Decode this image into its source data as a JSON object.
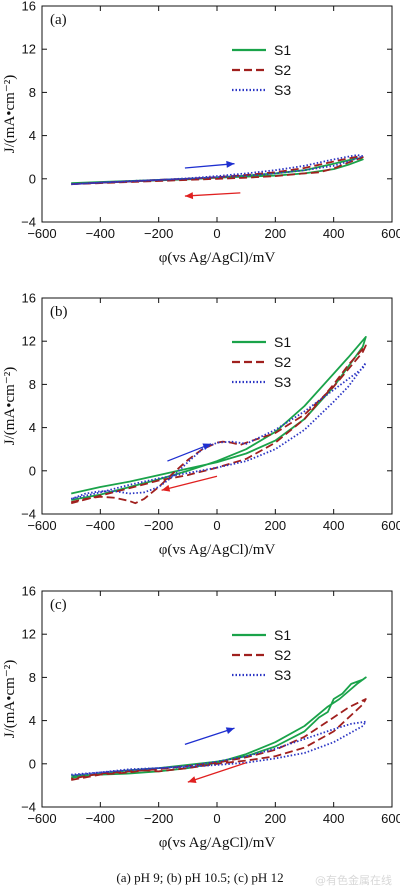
{
  "caption": "(a) pH 9; (b) pH 10.5; (c) pH 12",
  "watermark": "@有色金属在线",
  "colors": {
    "S1": "#1aa34a",
    "S2": "#a0201e",
    "S3": "#2b35c4",
    "arrow_fwd": "#1e2fd0",
    "arrow_back": "#e02020"
  },
  "chart_data": [
    {
      "type": "line",
      "panel_label": "(a)",
      "xlabel": "φ(vs Ag/AgCl)/mV",
      "ylabel": "J/(mA•cm⁻²)",
      "xlim": [
        -600,
        600
      ],
      "ylim": [
        -4,
        16
      ],
      "xticks": [
        -600,
        -400,
        -200,
        0,
        200,
        400,
        600
      ],
      "yticks": [
        -4,
        0,
        4,
        8,
        12,
        16
      ],
      "legend_position": "top-right",
      "series": [
        {
          "name": "S1",
          "style": "solid",
          "x": [
            -500,
            -400,
            -300,
            -200,
            -100,
            0,
            100,
            200,
            300,
            400,
            450,
            500,
            480,
            400,
            300,
            200,
            100,
            0,
            -100,
            -200,
            -300,
            -400,
            -500
          ],
          "y": [
            -0.4,
            -0.3,
            -0.2,
            -0.1,
            0.0,
            0.1,
            0.2,
            0.3,
            0.5,
            0.9,
            1.3,
            1.8,
            1.9,
            1.4,
            0.8,
            0.5,
            0.3,
            0.1,
            -0.05,
            -0.15,
            -0.25,
            -0.35,
            -0.45
          ]
        },
        {
          "name": "S2",
          "style": "dashed",
          "x": [
            -500,
            -400,
            -300,
            -200,
            -100,
            0,
            100,
            200,
            300,
            350,
            400,
            450,
            500,
            480,
            400,
            300,
            200,
            100,
            0,
            -100,
            -200,
            -300,
            -400,
            -500
          ],
          "y": [
            -0.5,
            -0.4,
            -0.3,
            -0.2,
            -0.1,
            0.0,
            0.1,
            0.25,
            0.5,
            0.6,
            0.95,
            1.5,
            2.0,
            2.05,
            1.6,
            1.0,
            0.6,
            0.35,
            0.15,
            0.0,
            -0.1,
            -0.25,
            -0.35,
            -0.5
          ]
        },
        {
          "name": "S3",
          "style": "dotted",
          "x": [
            -500,
            -400,
            -300,
            -200,
            -100,
            0,
            100,
            200,
            300,
            400,
            450,
            500,
            480,
            400,
            300,
            200,
            100,
            0,
            -100,
            -200,
            -300,
            -400,
            -500
          ],
          "y": [
            -0.5,
            -0.35,
            -0.25,
            -0.1,
            0.0,
            0.15,
            0.3,
            0.5,
            0.8,
            1.2,
            1.6,
            2.1,
            2.2,
            1.8,
            1.2,
            0.8,
            0.5,
            0.25,
            0.05,
            -0.1,
            -0.2,
            -0.35,
            -0.5
          ]
        }
      ],
      "annotations": [
        {
          "type": "arrow",
          "color": "arrow_fwd",
          "from": [
            -110,
            1.0
          ],
          "to": [
            60,
            1.4
          ]
        },
        {
          "type": "arrow",
          "color": "arrow_back",
          "from": [
            80,
            -1.3
          ],
          "to": [
            -110,
            -1.6
          ]
        }
      ]
    },
    {
      "type": "line",
      "panel_label": "(b)",
      "xlabel": "φ(vs Ag/AgCl)/mV",
      "ylabel": "J/(mA•cm⁻²)",
      "xlim": [
        -600,
        600
      ],
      "ylim": [
        -4,
        16
      ],
      "xticks": [
        -600,
        -400,
        -200,
        0,
        200,
        400,
        600
      ],
      "yticks": [
        -4,
        0,
        4,
        8,
        12,
        16
      ],
      "legend_position": "top-right",
      "series": [
        {
          "name": "S1",
          "style": "solid",
          "x": [
            -500,
            -400,
            -300,
            -200,
            -100,
            0,
            100,
            200,
            300,
            400,
            500,
            510,
            450,
            400,
            300,
            200,
            100,
            0,
            -100,
            -200,
            -300,
            -400,
            -500
          ],
          "y": [
            -2.1,
            -1.5,
            -1.0,
            -0.4,
            0.2,
            0.8,
            1.6,
            2.8,
            4.8,
            7.8,
            11.5,
            12.4,
            10.5,
            9.0,
            6.0,
            3.6,
            2.0,
            0.9,
            0.0,
            -0.8,
            -1.5,
            -2.2,
            -2.7
          ]
        },
        {
          "name": "S2",
          "style": "dashed",
          "x": [
            -500,
            -450,
            -400,
            -350,
            -300,
            -280,
            -250,
            -200,
            -150,
            -100,
            -50,
            0,
            20,
            50,
            80,
            100,
            200,
            300,
            400,
            500,
            510,
            450,
            400,
            300,
            200,
            100,
            0,
            -100,
            -200,
            -300,
            -400,
            -500
          ],
          "y": [
            -2.9,
            -2.6,
            -2.4,
            -2.5,
            -2.8,
            -3.0,
            -2.6,
            -1.5,
            -0.2,
            1.0,
            2.0,
            2.6,
            2.7,
            2.6,
            2.4,
            2.6,
            3.5,
            5.2,
            7.8,
            11.0,
            11.6,
            9.8,
            8.0,
            4.8,
            2.6,
            1.1,
            0.3,
            -0.4,
            -0.9,
            -1.6,
            -2.3,
            -3.0
          ]
        },
        {
          "name": "S3",
          "style": "dotted",
          "x": [
            -500,
            -450,
            -400,
            -350,
            -300,
            -250,
            -200,
            -150,
            -100,
            -50,
            0,
            50,
            100,
            200,
            300,
            400,
            500,
            510,
            450,
            400,
            300,
            200,
            100,
            0,
            -100,
            -200,
            -300,
            -400,
            -500
          ],
          "y": [
            -2.6,
            -2.1,
            -1.9,
            -1.9,
            -2.1,
            -2.0,
            -1.5,
            -0.5,
            0.8,
            2.0,
            2.6,
            2.7,
            2.5,
            3.8,
            5.5,
            7.5,
            9.5,
            10.0,
            7.8,
            6.4,
            3.8,
            2.0,
            0.9,
            0.3,
            -0.2,
            -0.7,
            -1.3,
            -2.0,
            -2.6
          ]
        }
      ],
      "annotations": [
        {
          "type": "arrow",
          "color": "arrow_fwd",
          "from": [
            -170,
            0.9
          ],
          "to": [
            -20,
            2.5
          ]
        },
        {
          "type": "arrow",
          "color": "arrow_back",
          "from": [
            0,
            -0.5
          ],
          "to": [
            -190,
            -1.8
          ]
        }
      ]
    },
    {
      "type": "line",
      "panel_label": "(c)",
      "xlabel": "φ(vs Ag/AgCl)/mV",
      "ylabel": "J/(mA•cm⁻²)",
      "xlim": [
        -600,
        600
      ],
      "ylim": [
        -4,
        16
      ],
      "xticks": [
        -600,
        -400,
        -200,
        0,
        200,
        400,
        600
      ],
      "yticks": [
        -4,
        0,
        4,
        8,
        12,
        16
      ],
      "legend_position": "top-right",
      "series": [
        {
          "name": "S1",
          "style": "solid",
          "x": [
            -500,
            -400,
            -300,
            -200,
            -100,
            0,
            100,
            200,
            300,
            350,
            380,
            400,
            430,
            460,
            500,
            510,
            480,
            420,
            380,
            300,
            200,
            100,
            0,
            -100,
            -200,
            -300,
            -400,
            -500
          ],
          "y": [
            -1.3,
            -0.9,
            -0.6,
            -0.4,
            -0.1,
            0.2,
            0.7,
            1.6,
            3.0,
            4.3,
            4.8,
            6.0,
            6.5,
            7.4,
            7.8,
            8.0,
            7.4,
            6.0,
            5.3,
            3.5,
            2.0,
            0.9,
            0.1,
            -0.4,
            -0.7,
            -0.9,
            -1.0,
            -1.1
          ]
        },
        {
          "name": "S2",
          "style": "dashed",
          "x": [
            -500,
            -400,
            -300,
            -250,
            -200,
            -100,
            0,
            100,
            200,
            300,
            400,
            500,
            510,
            450,
            400,
            300,
            200,
            100,
            0,
            -100,
            -200,
            -300,
            -400,
            -500
          ],
          "y": [
            -1.5,
            -1.0,
            -0.8,
            -0.6,
            -0.7,
            -0.4,
            0.0,
            0.3,
            0.7,
            1.5,
            3.0,
            5.5,
            6.0,
            5.2,
            4.3,
            2.5,
            1.3,
            0.6,
            0.1,
            -0.2,
            -0.5,
            -0.7,
            -0.9,
            -1.4
          ]
        },
        {
          "name": "S3",
          "style": "dotted",
          "x": [
            -500,
            -400,
            -300,
            -200,
            -100,
            0,
            100,
            200,
            300,
            400,
            500,
            510,
            460,
            400,
            300,
            200,
            100,
            0,
            -100,
            -200,
            -300,
            -400,
            -500
          ],
          "y": [
            -1.0,
            -0.8,
            -0.5,
            -0.4,
            -0.3,
            -0.1,
            0.1,
            0.5,
            1.0,
            2.0,
            3.5,
            3.9,
            3.7,
            3.2,
            2.3,
            1.4,
            0.7,
            0.2,
            -0.2,
            -0.4,
            -0.6,
            -0.8,
            -1.1
          ]
        }
      ],
      "annotations": [
        {
          "type": "arrow",
          "color": "arrow_fwd",
          "from": [
            -110,
            1.8
          ],
          "to": [
            60,
            3.3
          ]
        },
        {
          "type": "arrow",
          "color": "arrow_back",
          "from": [
            100,
            0.1
          ],
          "to": [
            -100,
            -1.7
          ]
        }
      ]
    }
  ]
}
